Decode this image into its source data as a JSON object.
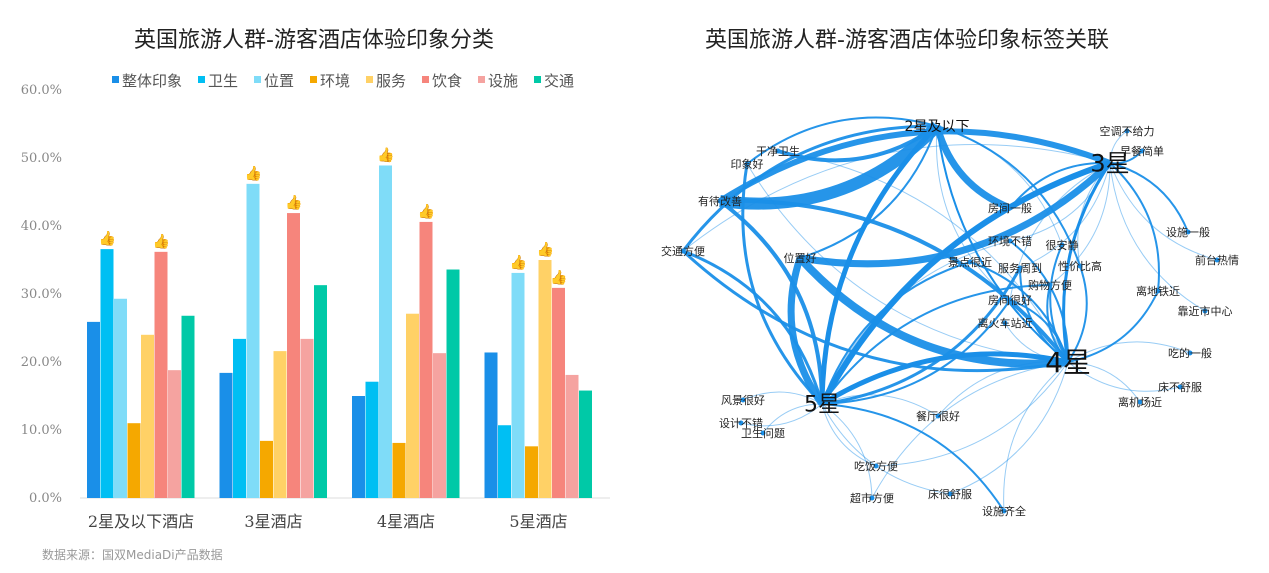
{
  "chart_data": [
    {
      "type": "bar",
      "title": "英国旅游人群-游客酒店体验印象分类",
      "categories": [
        "2星及以下酒店",
        "3星酒店",
        "4星酒店",
        "5星酒店"
      ],
      "ylim": [
        0,
        60
      ],
      "yticks": [
        "0.0%",
        "10.0%",
        "20.0%",
        "30.0%",
        "40.0%",
        "50.0%",
        "60.0%"
      ],
      "legend_position": "top",
      "series": [
        {
          "name": "整体印象",
          "color": "#1a8fe8",
          "values": [
            25.9,
            18.4,
            15.0,
            21.4
          ]
        },
        {
          "name": "卫生",
          "color": "#00bff3",
          "values": [
            36.6,
            23.4,
            17.1,
            10.7
          ]
        },
        {
          "name": "位置",
          "color": "#7fdcf8",
          "values": [
            29.3,
            46.2,
            48.9,
            33.1
          ]
        },
        {
          "name": "环境",
          "color": "#f5a800",
          "values": [
            11.0,
            8.4,
            8.1,
            7.6
          ]
        },
        {
          "name": "服务",
          "color": "#ffd166",
          "values": [
            24.0,
            21.6,
            27.1,
            35.0
          ]
        },
        {
          "name": "饮食",
          "color": "#f6857c",
          "values": [
            36.2,
            41.9,
            40.6,
            30.9
          ]
        },
        {
          "name": "设施",
          "color": "#f5a3a0",
          "values": [
            18.8,
            23.4,
            21.3,
            18.1
          ]
        },
        {
          "name": "交通",
          "color": "#00c9a7",
          "values": [
            26.8,
            31.3,
            33.6,
            15.8
          ]
        }
      ],
      "highlights": [
        [
          0,
          1
        ],
        [
          0,
          5
        ],
        [
          1,
          2
        ],
        [
          1,
          5
        ],
        [
          2,
          2
        ],
        [
          2,
          5
        ],
        [
          3,
          2
        ],
        [
          3,
          4
        ],
        [
          3,
          5
        ]
      ],
      "source": "数据来源：国双MediaDi产品数据"
    },
    {
      "type": "network",
      "title": "英国旅游人群-游客酒店体验印象标签关联",
      "edge_color": "#1a8fe8",
      "hubs": [
        "2星及以下",
        "3星",
        "4星",
        "5星"
      ],
      "tags": [
        "干净卫生",
        "印象好",
        "有待改善",
        "交通方便",
        "位置好",
        "房间一般",
        "环境不错",
        "很安静",
        "景点很近",
        "服务周到",
        "性价比高",
        "购物方便",
        "房间很好",
        "离火车站近",
        "空调不给力",
        "早餐简单",
        "设施一般",
        "前台热情",
        "离地铁近",
        "靠近市中心",
        "吃的一般",
        "床不舒服",
        "离机场近",
        "风景很好",
        "设计不错",
        "卫生问题",
        "餐厅很好",
        "吃饭方便",
        "超市方便",
        "床很舒服",
        "设施齐全"
      ]
    }
  ]
}
